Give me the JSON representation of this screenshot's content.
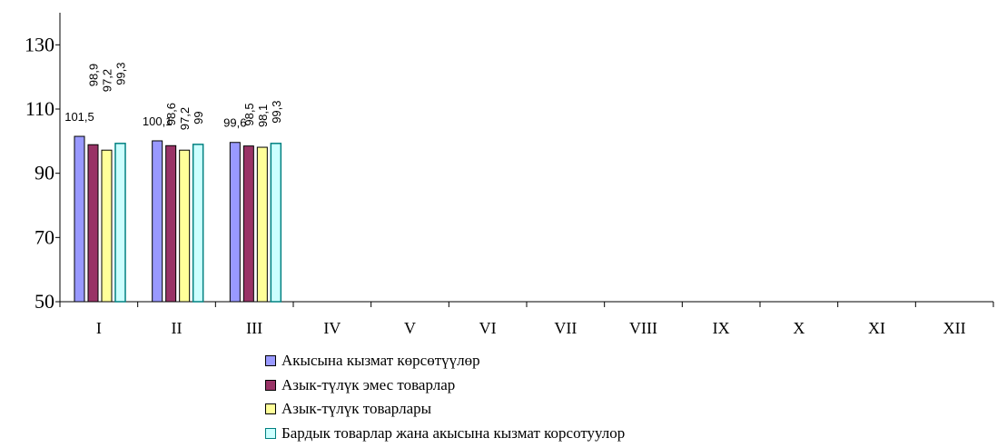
{
  "chart_data": {
    "type": "bar",
    "categories": [
      "I",
      "II",
      "III",
      "IV",
      "V",
      "VI",
      "VII",
      "VIII",
      "IX",
      "X",
      "XI",
      "XII"
    ],
    "series": [
      {
        "name": "Акысына кызмат көрсөтүүлөр",
        "color": "#9999ff",
        "values": [
          101.5,
          100.1,
          99.6,
          null,
          null,
          null,
          null,
          null,
          null,
          null,
          null,
          null
        ],
        "labels": [
          "101,5",
          "100,1",
          "99,6",
          "",
          "",
          "",
          "",
          "",
          "",
          "",
          "",
          ""
        ]
      },
      {
        "name": "Азык-түлүк эмес товарлар",
        "color": "#993366",
        "values": [
          98.9,
          98.6,
          98.5,
          null,
          null,
          null,
          null,
          null,
          null,
          null,
          null,
          null
        ],
        "labels": [
          "98,9",
          "98,6",
          "98,5",
          "",
          "",
          "",
          "",
          "",
          "",
          "",
          "",
          ""
        ]
      },
      {
        "name": "Азык-түлүк товарлары",
        "color": "#ffff99",
        "values": [
          97.2,
          97.2,
          98.1,
          null,
          null,
          null,
          null,
          null,
          null,
          null,
          null,
          null
        ],
        "labels": [
          "97,2",
          "97,2",
          "98,1",
          "",
          "",
          "",
          "",
          "",
          "",
          "",
          "",
          ""
        ]
      },
      {
        "name": "Бардык товарлар жана акысына кызмат корсотуулор",
        "color": "#ccffff",
        "border": "#008080",
        "values": [
          99.3,
          99,
          99.3,
          null,
          null,
          null,
          null,
          null,
          null,
          null,
          null,
          null
        ],
        "labels": [
          "99,3",
          "99",
          "99,3",
          "",
          "",
          "",
          "",
          "",
          "",
          "",
          "",
          ""
        ]
      }
    ],
    "yticks": [
      "50",
      "70",
      "90",
      "110",
      "130"
    ],
    "ylim": [
      50,
      140
    ],
    "title": "",
    "xlabel": "",
    "ylabel": "",
    "legend_position": "bottom-center"
  }
}
